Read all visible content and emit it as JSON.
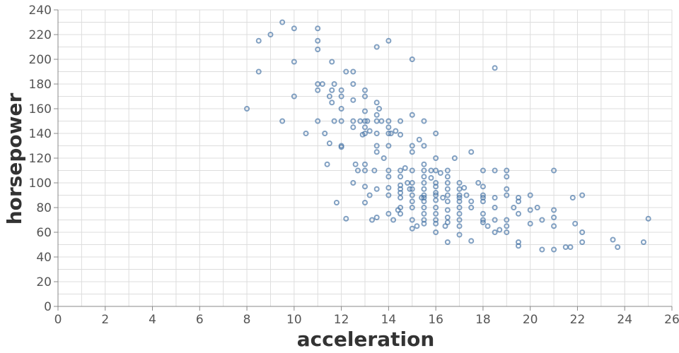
{
  "chart_data": {
    "type": "scatter",
    "title": "",
    "xlabel": "acceleration",
    "ylabel": "horsepower",
    "xlim": [
      0,
      26
    ],
    "ylim": [
      0,
      240
    ],
    "x_ticks": [
      0,
      2,
      4,
      6,
      8,
      10,
      12,
      14,
      16,
      18,
      20,
      22,
      24,
      26
    ],
    "y_ticks": [
      0,
      20,
      40,
      60,
      80,
      100,
      120,
      140,
      160,
      180,
      200,
      220,
      240
    ],
    "grid": true,
    "point_color": "#4c78a8",
    "series": [
      {
        "points": [
          [
            8,
            160
          ],
          [
            8.5,
            215
          ],
          [
            8.5,
            190
          ],
          [
            9,
            220
          ],
          [
            9.5,
            230
          ],
          [
            9.5,
            150
          ],
          [
            10,
            225
          ],
          [
            10,
            198
          ],
          [
            10,
            170
          ],
          [
            10.5,
            140
          ],
          [
            11,
            225
          ],
          [
            11,
            215
          ],
          [
            11,
            208
          ],
          [
            11,
            180
          ],
          [
            11,
            175
          ],
          [
            11,
            150
          ],
          [
            11.2,
            180
          ],
          [
            11.3,
            140
          ],
          [
            11.4,
            115
          ],
          [
            11.5,
            170
          ],
          [
            11.5,
            132
          ],
          [
            11.6,
            198
          ],
          [
            11.6,
            175
          ],
          [
            11.6,
            165
          ],
          [
            11.7,
            180
          ],
          [
            11.7,
            150
          ],
          [
            11.8,
            84
          ],
          [
            12,
            175
          ],
          [
            12,
            170
          ],
          [
            12,
            160
          ],
          [
            12,
            150
          ],
          [
            12,
            130
          ],
          [
            12,
            129
          ],
          [
            12.2,
            190
          ],
          [
            12.2,
            71
          ],
          [
            12.5,
            190
          ],
          [
            12.5,
            180
          ],
          [
            12.5,
            167
          ],
          [
            12.5,
            150
          ],
          [
            12.5,
            145
          ],
          [
            12.5,
            100
          ],
          [
            12.6,
            115
          ],
          [
            12.7,
            110
          ],
          [
            12.8,
            150
          ],
          [
            12.9,
            139
          ],
          [
            13,
            175
          ],
          [
            13,
            170
          ],
          [
            13,
            158
          ],
          [
            13,
            150
          ],
          [
            13,
            145
          ],
          [
            13,
            140
          ],
          [
            13,
            115
          ],
          [
            13,
            110
          ],
          [
            13,
            97
          ],
          [
            13,
            84
          ],
          [
            13.1,
            150
          ],
          [
            13.2,
            142
          ],
          [
            13.2,
            90
          ],
          [
            13.3,
            70
          ],
          [
            13.4,
            110
          ],
          [
            13.5,
            210
          ],
          [
            13.5,
            165
          ],
          [
            13.5,
            155
          ],
          [
            13.5,
            150
          ],
          [
            13.5,
            140
          ],
          [
            13.5,
            130
          ],
          [
            13.5,
            125
          ],
          [
            13.5,
            95
          ],
          [
            13.5,
            72
          ],
          [
            13.6,
            160
          ],
          [
            13.7,
            150
          ],
          [
            13.8,
            120
          ],
          [
            14,
            215
          ],
          [
            14,
            150
          ],
          [
            14,
            145
          ],
          [
            14,
            140
          ],
          [
            14,
            130
          ],
          [
            14,
            110
          ],
          [
            14,
            105
          ],
          [
            14,
            96
          ],
          [
            14,
            90
          ],
          [
            14,
            75
          ],
          [
            14.1,
            140
          ],
          [
            14.2,
            70
          ],
          [
            14.3,
            142
          ],
          [
            14.4,
            78
          ],
          [
            14.5,
            150
          ],
          [
            14.5,
            139
          ],
          [
            14.5,
            110
          ],
          [
            14.5,
            105
          ],
          [
            14.5,
            98
          ],
          [
            14.5,
            95
          ],
          [
            14.5,
            92
          ],
          [
            14.5,
            88
          ],
          [
            14.5,
            80
          ],
          [
            14.5,
            75
          ],
          [
            14.7,
            112
          ],
          [
            14.8,
            100
          ],
          [
            14.9,
            95
          ],
          [
            15,
            200
          ],
          [
            15,
            155
          ],
          [
            15,
            130
          ],
          [
            15,
            125
          ],
          [
            15,
            110
          ],
          [
            15,
            100
          ],
          [
            15,
            95
          ],
          [
            15,
            90
          ],
          [
            15,
            85
          ],
          [
            15,
            80
          ],
          [
            15,
            70
          ],
          [
            15,
            63
          ],
          [
            15.2,
            65
          ],
          [
            15.3,
            135
          ],
          [
            15.4,
            88
          ],
          [
            15.5,
            150
          ],
          [
            15.5,
            130
          ],
          [
            15.5,
            115
          ],
          [
            15.5,
            110
          ],
          [
            15.5,
            105
          ],
          [
            15.5,
            100
          ],
          [
            15.5,
            95
          ],
          [
            15.5,
            90
          ],
          [
            15.5,
            88
          ],
          [
            15.5,
            85
          ],
          [
            15.5,
            80
          ],
          [
            15.5,
            75
          ],
          [
            15.5,
            70
          ],
          [
            15.5,
            67
          ],
          [
            15.8,
            110
          ],
          [
            15.8,
            104
          ],
          [
            16,
            140
          ],
          [
            16,
            120
          ],
          [
            16,
            110
          ],
          [
            16,
            100
          ],
          [
            16,
            97
          ],
          [
            16,
            92
          ],
          [
            16,
            90
          ],
          [
            16,
            86
          ],
          [
            16,
            80
          ],
          [
            16,
            75
          ],
          [
            16,
            70
          ],
          [
            16,
            67
          ],
          [
            16,
            60
          ],
          [
            16.2,
            108
          ],
          [
            16.3,
            88
          ],
          [
            16.4,
            65
          ],
          [
            16.5,
            110
          ],
          [
            16.5,
            105
          ],
          [
            16.5,
            100
          ],
          [
            16.5,
            95
          ],
          [
            16.5,
            90
          ],
          [
            16.5,
            85
          ],
          [
            16.5,
            78
          ],
          [
            16.5,
            72
          ],
          [
            16.5,
            68
          ],
          [
            16.5,
            52
          ],
          [
            16.8,
            120
          ],
          [
            17,
            100
          ],
          [
            17,
            95
          ],
          [
            17,
            90
          ],
          [
            17,
            88
          ],
          [
            17,
            85
          ],
          [
            17,
            80
          ],
          [
            17,
            75
          ],
          [
            17,
            70
          ],
          [
            17,
            65
          ],
          [
            17,
            58
          ],
          [
            17.2,
            96
          ],
          [
            17.3,
            90
          ],
          [
            17.5,
            125
          ],
          [
            17.5,
            85
          ],
          [
            17.5,
            80
          ],
          [
            17.5,
            53
          ],
          [
            17.8,
            100
          ],
          [
            18,
            110
          ],
          [
            18,
            97
          ],
          [
            18,
            90
          ],
          [
            18,
            88
          ],
          [
            18,
            85
          ],
          [
            18,
            75
          ],
          [
            18,
            70
          ],
          [
            18,
            68
          ],
          [
            18.2,
            65
          ],
          [
            18.5,
            193
          ],
          [
            18.5,
            110
          ],
          [
            18.5,
            88
          ],
          [
            18.5,
            80
          ],
          [
            18.5,
            70
          ],
          [
            18.5,
            60
          ],
          [
            18.7,
            62
          ],
          [
            19,
            110
          ],
          [
            19,
            105
          ],
          [
            19,
            95
          ],
          [
            19,
            90
          ],
          [
            19,
            70
          ],
          [
            19,
            65
          ],
          [
            19,
            60
          ],
          [
            19.3,
            80
          ],
          [
            19.5,
            88
          ],
          [
            19.5,
            85
          ],
          [
            19.5,
            75
          ],
          [
            19.5,
            52
          ],
          [
            19.5,
            49
          ],
          [
            20,
            90
          ],
          [
            20,
            78
          ],
          [
            20,
            67
          ],
          [
            20.3,
            80
          ],
          [
            20.5,
            46
          ],
          [
            20.5,
            70
          ],
          [
            21,
            110
          ],
          [
            21,
            78
          ],
          [
            21,
            72
          ],
          [
            21,
            65
          ],
          [
            21,
            46
          ],
          [
            21.5,
            48
          ],
          [
            21.7,
            48
          ],
          [
            21.8,
            88
          ],
          [
            21.9,
            67
          ],
          [
            22.2,
            60
          ],
          [
            22.2,
            90
          ],
          [
            22.2,
            52
          ],
          [
            23.5,
            54
          ],
          [
            23.7,
            48
          ],
          [
            24.8,
            52
          ],
          [
            25,
            71
          ]
        ]
      }
    ]
  }
}
